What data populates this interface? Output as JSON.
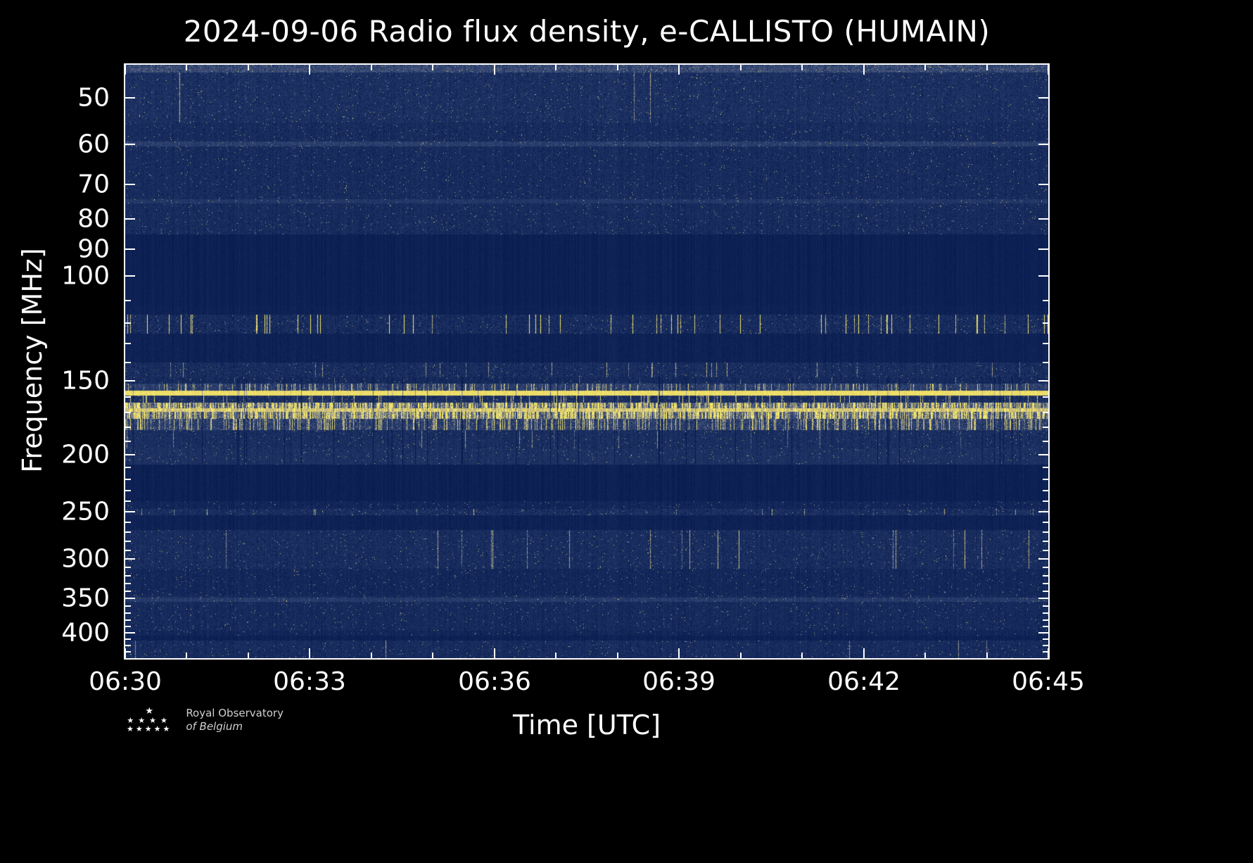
{
  "logo": {
    "line1": "Royal Observatory",
    "line2": "of Belgium"
  },
  "chart_data": {
    "type": "heatmap",
    "subtype": "radio-spectrogram",
    "title": "2024-09-06 Radio flux density, e-CALLISTO (HUMAIN)",
    "xlabel": "Time [UTC]",
    "ylabel": "Frequency [MHz]",
    "x_ticks": [
      "06:30",
      "06:33",
      "06:36",
      "06:39",
      "06:42",
      "06:45"
    ],
    "x_total_minutes": 15,
    "x_minor_step_minutes": 1,
    "y_ticks": [
      50,
      60,
      70,
      80,
      90,
      100,
      150,
      200,
      250,
      300,
      350,
      400
    ],
    "y_scale": "log",
    "freq_range_mhz": [
      44,
      441
    ],
    "grid": false,
    "legend": false,
    "colors": {
      "background": "#000000",
      "frame": "#ffffff",
      "quiet_blue": "#14295b",
      "bright_yellow": "#ffee5a"
    },
    "cmap": [
      {
        "v": 0.0,
        "c": "#071a4e"
      },
      {
        "v": 0.28,
        "c": "#2a3f6e"
      },
      {
        "v": 0.55,
        "c": "#9a9aa0"
      },
      {
        "v": 0.78,
        "c": "#ddca6a"
      },
      {
        "v": 1.0,
        "c": "#fff468"
      }
    ],
    "bands_note": "Horizontal frequency bands, relative intensity 0-1 estimated from image; bp/bg = vertical burst probability and gain",
    "bands": [
      {
        "f0": 44.0,
        "f1": 45.4,
        "base": 0.3,
        "noise": 0.15,
        "bp": 0,
        "bg": 0
      },
      {
        "f0": 45.4,
        "f1": 55.0,
        "base": 0.16,
        "noise": 0.15,
        "bp": 0.004,
        "bg": 0.35
      },
      {
        "f0": 55.0,
        "f1": 59.3,
        "base": 0.13,
        "noise": 0.12,
        "bp": 0,
        "bg": 0
      },
      {
        "f0": 59.3,
        "f1": 60.4,
        "base": 0.26,
        "noise": 0.1,
        "bp": 0,
        "bg": 0
      },
      {
        "f0": 60.4,
        "f1": 74.2,
        "base": 0.13,
        "noise": 0.12,
        "bp": 0,
        "bg": 0
      },
      {
        "f0": 74.2,
        "f1": 75.4,
        "base": 0.22,
        "noise": 0.1,
        "bp": 0,
        "bg": 0
      },
      {
        "f0": 75.4,
        "f1": 85.0,
        "base": 0.13,
        "noise": 0.12,
        "bp": 0,
        "bg": 0
      },
      {
        "f0": 85.0,
        "f1": 112.0,
        "base": 0.05,
        "noise": 0.035,
        "bp": 0,
        "bg": 0
      },
      {
        "f0": 112.0,
        "f1": 116.0,
        "base": 0.06,
        "noise": 0.05,
        "bp": 0,
        "bg": 0
      },
      {
        "f0": 116.0,
        "f1": 125.0,
        "base": 0.13,
        "noise": 0.17,
        "bp": 0.05,
        "bg": 0.8
      },
      {
        "f0": 125.0,
        "f1": 140.0,
        "base": 0.06,
        "noise": 0.05,
        "bp": 0,
        "bg": 0
      },
      {
        "f0": 140.0,
        "f1": 148.0,
        "base": 0.14,
        "noise": 0.15,
        "bp": 0.02,
        "bg": 0.4
      },
      {
        "f0": 148.0,
        "f1": 152.0,
        "base": 0.12,
        "noise": 0.12,
        "bp": 0.01,
        "bg": 0.3
      },
      {
        "f0": 152.0,
        "f1": 156.0,
        "base": 0.25,
        "noise": 0.2,
        "bp": 0.15,
        "bg": 0.4
      },
      {
        "f0": 156.0,
        "f1": 159.0,
        "base": 0.88,
        "noise": 0.08,
        "bp": 0,
        "bg": 0
      },
      {
        "f0": 159.0,
        "f1": 163.5,
        "base": 0.16,
        "noise": 0.16,
        "bp": 0.06,
        "bg": 0.5
      },
      {
        "f0": 163.5,
        "f1": 167.0,
        "base": 0.35,
        "noise": 0.25,
        "bp": 0.5,
        "bg": 0.5
      },
      {
        "f0": 167.0,
        "f1": 169.5,
        "base": 0.72,
        "noise": 0.18,
        "bp": 0.3,
        "bg": 0.25
      },
      {
        "f0": 169.5,
        "f1": 174.0,
        "base": 0.35,
        "noise": 0.25,
        "bp": 0.5,
        "bg": 0.5
      },
      {
        "f0": 174.0,
        "f1": 182.0,
        "base": 0.25,
        "noise": 0.22,
        "bp": 0.2,
        "bg": 0.45
      },
      {
        "f0": 182.0,
        "f1": 195.0,
        "base": 0.15,
        "noise": 0.14,
        "bp": 0.01,
        "bg": 0.3
      },
      {
        "f0": 195.0,
        "f1": 208.0,
        "base": 0.17,
        "noise": 0.12,
        "bp": 0,
        "bg": 0
      },
      {
        "f0": 208.0,
        "f1": 240.0,
        "base": 0.05,
        "noise": 0.04,
        "bp": 0,
        "bg": 0
      },
      {
        "f0": 240.0,
        "f1": 247.0,
        "base": 0.09,
        "noise": 0.09,
        "bp": 0,
        "bg": 0
      },
      {
        "f0": 247.0,
        "f1": 253.0,
        "base": 0.15,
        "noise": 0.15,
        "bp": 0.015,
        "bg": 0.4
      },
      {
        "f0": 253.0,
        "f1": 268.0,
        "base": 0.06,
        "noise": 0.05,
        "bp": 0,
        "bg": 0
      },
      {
        "f0": 268.0,
        "f1": 312.0,
        "base": 0.14,
        "noise": 0.13,
        "bp": 0.012,
        "bg": 0.45
      },
      {
        "f0": 312.0,
        "f1": 332.0,
        "base": 0.1,
        "noise": 0.1,
        "bp": 0,
        "bg": 0
      },
      {
        "f0": 332.0,
        "f1": 346.0,
        "base": 0.1,
        "noise": 0.09,
        "bp": 0,
        "bg": 0
      },
      {
        "f0": 346.0,
        "f1": 349.0,
        "base": 0.13,
        "noise": 0.11,
        "bp": 0,
        "bg": 0
      },
      {
        "f0": 349.0,
        "f1": 354.0,
        "base": 0.24,
        "noise": 0.12,
        "bp": 0,
        "bg": 0
      },
      {
        "f0": 354.0,
        "f1": 372.0,
        "base": 0.12,
        "noise": 0.1,
        "bp": 0,
        "bg": 0
      },
      {
        "f0": 372.0,
        "f1": 396.0,
        "base": 0.12,
        "noise": 0.11,
        "bp": 0,
        "bg": 0
      },
      {
        "f0": 396.0,
        "f1": 404.0,
        "base": 0.09,
        "noise": 0.08,
        "bp": 0,
        "bg": 0
      },
      {
        "f0": 404.0,
        "f1": 412.0,
        "base": 0.055,
        "noise": 0.05,
        "bp": 0,
        "bg": 0
      },
      {
        "f0": 412.0,
        "f1": 441.0,
        "base": 0.13,
        "noise": 0.12,
        "bp": 0.006,
        "bg": 0.3
      }
    ],
    "dark_columns": {
      "f0": 148,
      "f1": 208,
      "prob": 0.035,
      "strength": 0.32
    }
  }
}
